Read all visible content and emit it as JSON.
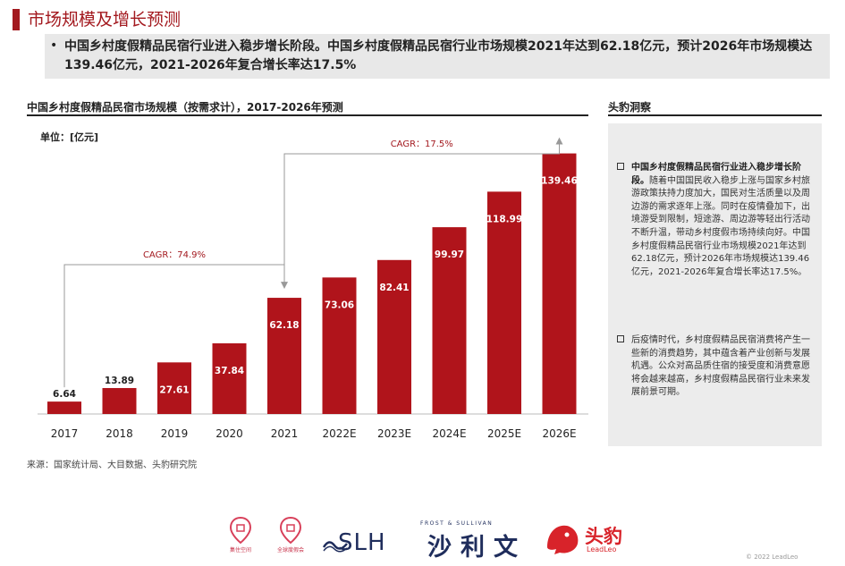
{
  "header": {
    "title": "市场规模及增长预测",
    "summary_bullet": "•",
    "summary": "中国乡村度假精品民宿行业进入稳步增长阶段。中国乡村度假精品民宿行业市场规模2021年达到62.18亿元，预计2026年市场规模达139.46亿元，2021-2026年复合增长率达17.5%"
  },
  "chart_section": {
    "title": "中国乡村度假精品民宿市场规模（按需求计），2017-2026年预测",
    "unit": "单位：[亿元]",
    "source": "来源：国家统计局、大目数据、头豹研究院"
  },
  "chart_data": {
    "type": "bar",
    "categories": [
      "2017",
      "2018",
      "2019",
      "2020",
      "2021",
      "2022E",
      "2023E",
      "2024E",
      "2025E",
      "2026E"
    ],
    "values": [
      6.64,
      13.89,
      27.61,
      37.84,
      62.18,
      73.06,
      82.41,
      99.97,
      118.99,
      139.46
    ],
    "value_labels": [
      "6.64",
      "13.89",
      "27.61",
      "37.84",
      "62.18",
      "73.06",
      "82.41",
      "99.97",
      "118.99",
      "139.46"
    ],
    "bar_color": "#b0141b",
    "ylim": [
      0,
      145
    ],
    "annotations": [
      {
        "label": "CAGR：74.9%",
        "from_index": 0,
        "to_index": 4
      },
      {
        "label": "CAGR：17.5%",
        "from_index": 4,
        "to_index": 9
      }
    ]
  },
  "insights": {
    "title": "头豹洞察",
    "items": [
      {
        "lead": "中国乡村度假精品民宿行业进入稳步增长阶段。",
        "text": "随着中国国民收入稳步上涨与国家乡村旅游政策扶持力度加大，国民对生活质量以及周边游的需求逐年上涨。同时在疫情叠加下，出境游受到限制，短途游、周边游等轻出行活动不断升温，带动乡村度假市场持续向好。中国乡村度假精品民宿行业市场规模2021年达到62.18亿元，预计2026年市场规模达139.46亿元，2021-2026年复合增长率达17.5%。"
      },
      {
        "lead": "",
        "text": "后疫情时代，乡村度假精品民宿消费将产生一些新的消费趋势，其中蕴含着产业创新与发展机遇。公众对高品质住宿的接受度和消费意愿将会越来越高，乡村度假精品民宿行业未来发展前景可期。"
      }
    ]
  },
  "logos": {
    "pin1_label": "集住空间",
    "pin2_label": "全球度假会",
    "slh": "SLH",
    "frost": "FROST & SULLIVAN",
    "frost_cn": "沙利文",
    "leadleo_cn": "头豹",
    "leadleo_en": "LeadLeo",
    "copyright": "© 2022 LeadLeo"
  }
}
